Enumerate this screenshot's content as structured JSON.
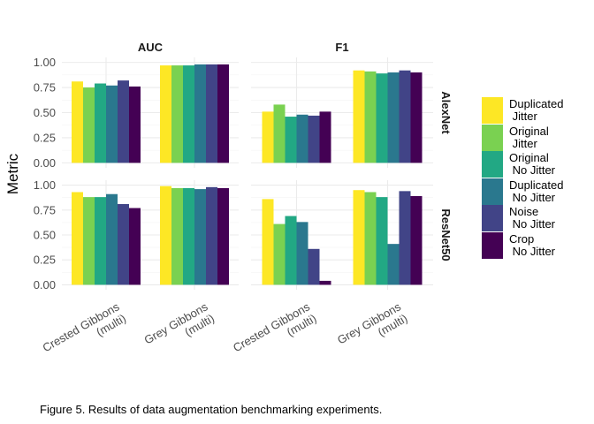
{
  "caption": "Figure 5. Results of data augmentation benchmarking experiments.",
  "chart_data": {
    "type": "bar",
    "ylabel": "Metric",
    "ylim": [
      0,
      1
    ],
    "yticks": [
      "0.00",
      "0.25",
      "0.50",
      "0.75",
      "1.00"
    ],
    "grid": true,
    "legend_position": "right",
    "facet_columns": [
      "AUC",
      "F1"
    ],
    "facet_rows": [
      "AlexNet",
      "ResNet50"
    ],
    "categories": [
      "Crested Gibbons\n(multi)",
      "Grey Gibbons\n(multi)"
    ],
    "series": [
      {
        "name": "Duplicated\n Jitter",
        "color": "#FDE725"
      },
      {
        "name": "Original\n Jitter",
        "color": "#7AD151"
      },
      {
        "name": "Original\n No Jitter",
        "color": "#22A884"
      },
      {
        "name": "Duplicated\n No Jitter",
        "color": "#2A788E"
      },
      {
        "name": "Noise\n No Jitter",
        "color": "#414487"
      },
      {
        "name": "Crop\n No Jitter",
        "color": "#440154"
      }
    ],
    "panels": [
      {
        "row": "AlexNet",
        "col": "AUC",
        "values": [
          [
            0.81,
            0.75,
            0.79,
            0.77,
            0.82,
            0.76
          ],
          [
            0.97,
            0.97,
            0.97,
            0.98,
            0.98,
            0.98
          ]
        ]
      },
      {
        "row": "AlexNet",
        "col": "F1",
        "values": [
          [
            0.51,
            0.58,
            0.46,
            0.48,
            0.47,
            0.51
          ],
          [
            0.92,
            0.91,
            0.89,
            0.9,
            0.92,
            0.9
          ]
        ]
      },
      {
        "row": "ResNet50",
        "col": "AUC",
        "values": [
          [
            0.93,
            0.88,
            0.88,
            0.91,
            0.81,
            0.77
          ],
          [
            0.99,
            0.97,
            0.97,
            0.96,
            0.98,
            0.97
          ]
        ]
      },
      {
        "row": "ResNet50",
        "col": "F1",
        "values": [
          [
            0.86,
            0.61,
            0.69,
            0.63,
            0.36,
            0.04
          ],
          [
            0.95,
            0.93,
            0.88,
            0.41,
            0.94,
            0.89
          ]
        ]
      }
    ]
  }
}
